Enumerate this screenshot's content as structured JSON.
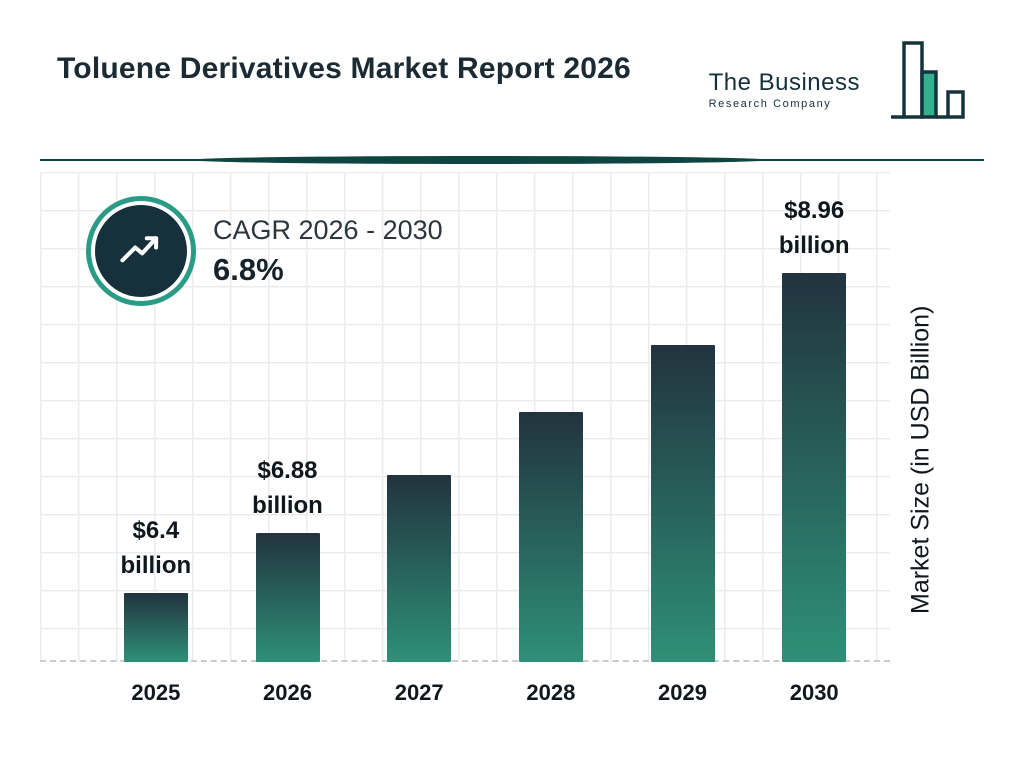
{
  "header": {
    "title": "Toluene Derivatives Market Report 2026",
    "logo": {
      "line1": "The Business",
      "line2": "Research Company"
    }
  },
  "cagr": {
    "label": "CAGR 2026 - 2030",
    "value": "6.8%"
  },
  "chart_data": {
    "type": "bar",
    "title": "Toluene Derivatives Market Report 2026",
    "categories": [
      "2025",
      "2026",
      "2027",
      "2028",
      "2029",
      "2030"
    ],
    "values": [
      6.4,
      6.88,
      7.35,
      7.85,
      8.39,
      8.96
    ],
    "bar_labels": [
      "$6.4 billion",
      "$6.88 billion",
      "",
      "",
      "",
      "$8.96 billion"
    ],
    "xlabel": "",
    "ylabel": "Market Size (in USD Billion)",
    "ylim": [
      5.85,
      9.1
    ],
    "grid": true,
    "colors": {
      "bar_top": "#22333f",
      "bar_bottom": "#2e9077",
      "accent_teal": "#2a9c86",
      "dark_navy": "#17313c"
    }
  }
}
